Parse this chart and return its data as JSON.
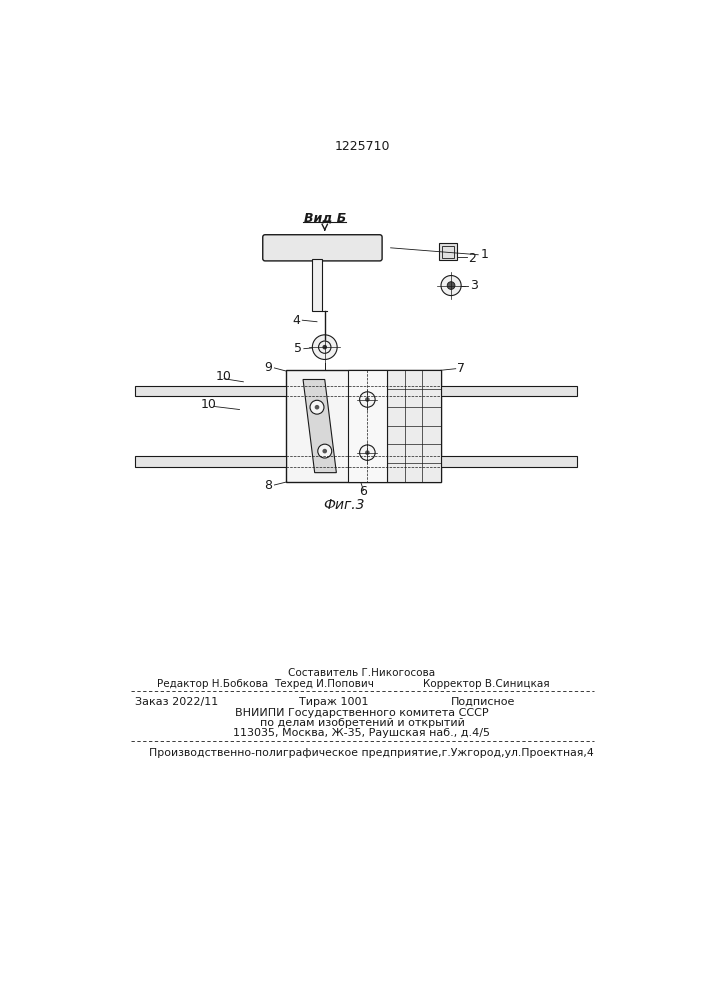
{
  "patent_number": "1225710",
  "background_color": "#ffffff",
  "fig_label": "Фиг.3",
  "vid_label": "Вид Б",
  "text_color": "#1a1a1a",
  "footer_comp": "Составитель Г.Никогосова",
  "footer_editor": "Редактор Н.Бобкова",
  "footer_tech": "Техред И.Попович",
  "footer_corr": "Корректор В.Синицкая",
  "footer_order": "Заказ 2022/11",
  "footer_tirazh": "Тираж 1001",
  "footer_podp": "Подписное",
  "footer_vnipi": "ВНИИПИ Государственного комитета СССР",
  "footer_dela": "по делам изобретений и открытий",
  "footer_addr": "113035, Москва, Ж-35, Раушская наб., д.4/5",
  "footer_prod": "Производственно-полиграфическое предприятие,г.Ужгород,ул.Проектная,4"
}
